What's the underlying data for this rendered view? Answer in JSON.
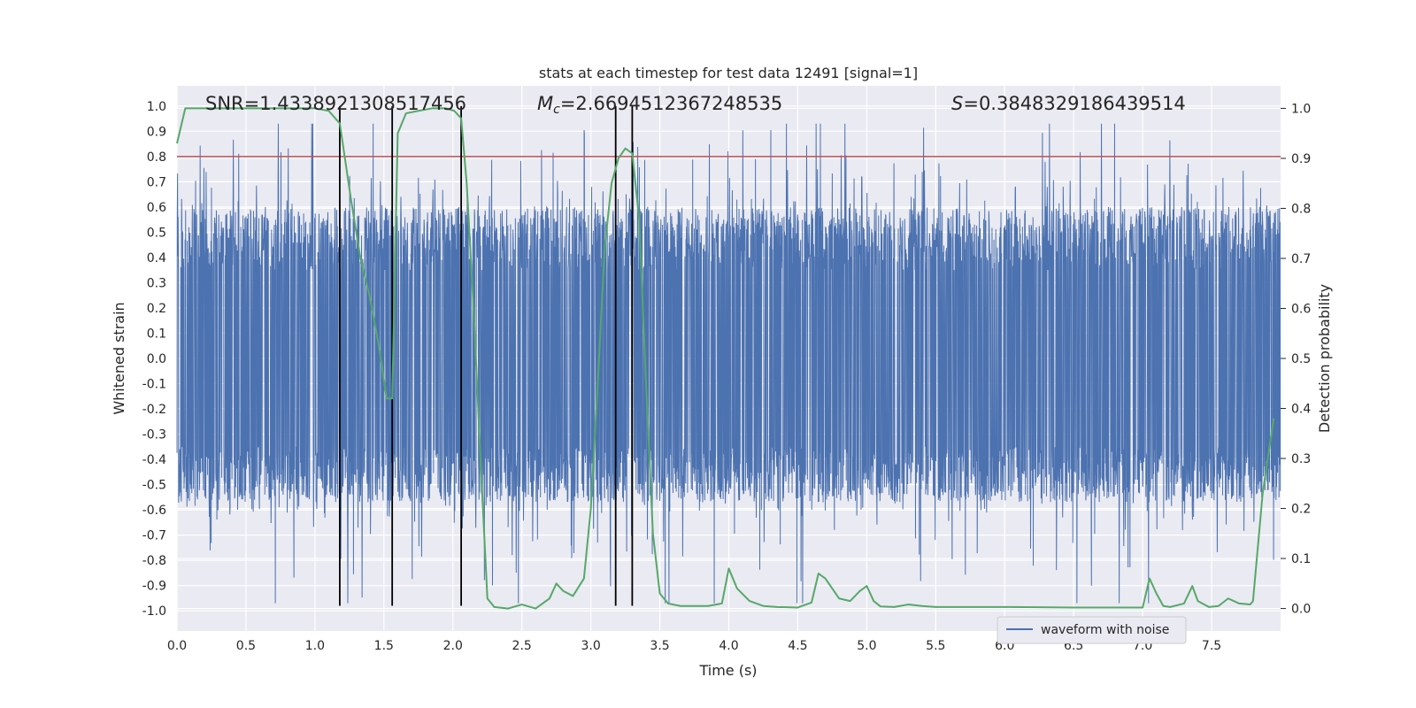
{
  "chart_data": {
    "type": "line",
    "title": "stats at each timestep for test data 12491 [signal=1]",
    "xlabel": "Time (s)",
    "ylabel": "Whitened strain",
    "y2label": "Detection probability",
    "xlim": [
      0.0,
      8.0
    ],
    "ylim": [
      -1.08,
      1.08
    ],
    "y2lim": [
      -0.045,
      1.045
    ],
    "xticks": [
      "0.0",
      "0.5",
      "1.0",
      "1.5",
      "2.0",
      "2.5",
      "3.0",
      "3.5",
      "4.0",
      "4.5",
      "5.0",
      "5.5",
      "6.0",
      "6.5",
      "7.0",
      "7.5"
    ],
    "xtick_values": [
      0,
      0.5,
      1,
      1.5,
      2,
      2.5,
      3,
      3.5,
      4,
      4.5,
      5,
      5.5,
      6,
      6.5,
      7,
      7.5
    ],
    "yticks": [
      "1.0",
      "0.9",
      "0.8",
      "0.7",
      "0.6",
      "0.5",
      "0.4",
      "0.3",
      "0.2",
      "0.1",
      "0.0",
      "-0.1",
      "-0.2",
      "-0.3",
      "-0.4",
      "-0.5",
      "-0.6",
      "-0.7",
      "-0.8",
      "-0.9",
      "-1.0"
    ],
    "ytick_values": [
      1.0,
      0.9,
      0.8,
      0.7,
      0.6,
      0.5,
      0.4,
      0.3,
      0.2,
      0.1,
      0.0,
      -0.1,
      -0.2,
      -0.3,
      -0.4,
      -0.5,
      -0.6,
      -0.7,
      -0.8,
      -0.9,
      -1.0
    ],
    "y2ticks": [
      "1.0",
      "0.9",
      "0.8",
      "0.7",
      "0.6",
      "0.5",
      "0.4",
      "0.3",
      "0.2",
      "0.1",
      "0.0"
    ],
    "y2tick_values": [
      1.0,
      0.9,
      0.8,
      0.7,
      0.6,
      0.5,
      0.4,
      0.3,
      0.2,
      0.1,
      0.0
    ],
    "annotations": {
      "snr": "SNR=1.4338921308517456",
      "mc": "=2.6694512367248535",
      "mc_symbol": "M",
      "mc_sub": "c",
      "s": "=0.3848329186439514",
      "s_symbol": "S"
    },
    "threshold": {
      "value": 0.8,
      "color": "#c44e52"
    },
    "vlines": {
      "x": [
        1.18,
        1.56,
        2.06,
        3.18,
        3.3
      ],
      "ymin": -0.98,
      "ymax": 1.0,
      "color": "#000000"
    },
    "waveform": {
      "name": "waveform with noise",
      "color": "#4c72b0",
      "n_points": 4096,
      "duration": 8.0,
      "envelope": 0.55
    },
    "probability": {
      "name": "Detection probability",
      "color": "#55a868",
      "x": [
        0.0,
        0.06,
        0.2,
        0.5,
        0.8,
        1.0,
        1.1,
        1.18,
        1.26,
        1.33,
        1.4,
        1.46,
        1.52,
        1.56,
        1.6,
        1.66,
        1.75,
        1.85,
        1.95,
        2.01,
        2.06,
        2.1,
        2.15,
        2.2,
        2.25,
        2.3,
        2.4,
        2.5,
        2.6,
        2.7,
        2.75,
        2.8,
        2.87,
        2.95,
        3.0,
        3.05,
        3.1,
        3.15,
        3.2,
        3.25,
        3.3,
        3.35,
        3.4,
        3.45,
        3.5,
        3.56,
        3.65,
        3.75,
        3.85,
        3.95,
        4.0,
        4.06,
        4.15,
        4.25,
        4.35,
        4.5,
        4.6,
        4.65,
        4.7,
        4.8,
        4.88,
        4.95,
        5.0,
        5.05,
        5.1,
        5.2,
        5.3,
        5.4,
        5.5,
        5.7,
        6.0,
        6.5,
        7.0,
        7.05,
        7.1,
        7.15,
        7.2,
        7.3,
        7.36,
        7.4,
        7.48,
        7.55,
        7.62,
        7.7,
        7.78,
        7.8,
        7.87,
        7.95
      ],
      "y": [
        0.93,
        1.0,
        1.0,
        1.0,
        1.0,
        1.0,
        0.995,
        0.97,
        0.82,
        0.7,
        0.62,
        0.53,
        0.42,
        0.42,
        0.95,
        0.99,
        0.995,
        1.0,
        1.0,
        0.995,
        0.98,
        0.85,
        0.6,
        0.3,
        0.02,
        0.003,
        0.0,
        0.008,
        0.0,
        0.02,
        0.05,
        0.035,
        0.025,
        0.06,
        0.2,
        0.45,
        0.72,
        0.85,
        0.9,
        0.92,
        0.91,
        0.78,
        0.45,
        0.15,
        0.03,
        0.01,
        0.005,
        0.005,
        0.005,
        0.01,
        0.08,
        0.04,
        0.015,
        0.005,
        0.003,
        0.002,
        0.012,
        0.07,
        0.06,
        0.02,
        0.015,
        0.035,
        0.045,
        0.015,
        0.004,
        0.003,
        0.008,
        0.005,
        0.003,
        0.003,
        0.003,
        0.002,
        0.002,
        0.06,
        0.03,
        0.005,
        0.003,
        0.01,
        0.045,
        0.015,
        0.003,
        0.005,
        0.02,
        0.01,
        0.008,
        0.015,
        0.23,
        0.38
      ]
    },
    "legend": {
      "label": "waveform with noise",
      "location": "lower-right"
    }
  }
}
